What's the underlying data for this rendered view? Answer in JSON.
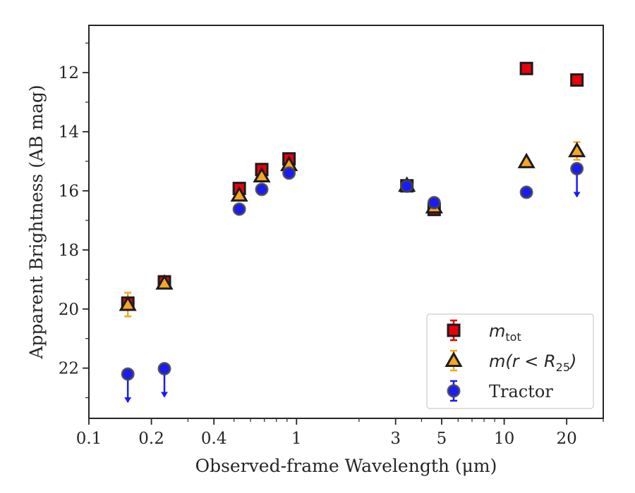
{
  "chart_data": {
    "type": "scatter",
    "xlabel": "Observed-frame Wavelength (μm)",
    "ylabel": "Apparent Brightness (AB mag)",
    "xscale": "log",
    "xlim": [
      0.1,
      30
    ],
    "ylim": [
      23.7,
      10.4
    ],
    "y_inverted": true,
    "x_ticks": [
      0.1,
      0.2,
      0.4,
      1,
      3,
      5,
      10,
      20
    ],
    "x_tick_labels": [
      "0.1",
      "0.2",
      "0.4",
      "1",
      "3",
      "5",
      "10",
      "20"
    ],
    "y_ticks": [
      12,
      14,
      16,
      18,
      20,
      22
    ],
    "y_tick_labels": [
      "12",
      "14",
      "16",
      "18",
      "20",
      "22"
    ],
    "grid": false,
    "legend_position": "lower-right",
    "series": [
      {
        "name": "m_tot",
        "legend": {
          "main": "m",
          "sub": "tot"
        },
        "marker": "square",
        "color": "#e8000b",
        "points": [
          {
            "x": 0.154,
            "y": 19.8,
            "err": 0.15
          },
          {
            "x": 0.231,
            "y": 19.08,
            "err": 0.1
          },
          {
            "x": 0.53,
            "y": 15.92,
            "err": 0.1
          },
          {
            "x": 0.68,
            "y": 15.28,
            "err": 0.1
          },
          {
            "x": 0.92,
            "y": 14.92,
            "err": 0.1
          },
          {
            "x": 3.4,
            "y": 15.83,
            "err": 0.1
          },
          {
            "x": 4.6,
            "y": 16.63,
            "err": 0.1
          },
          {
            "x": 12.8,
            "y": 11.86,
            "err": 0.1
          },
          {
            "x": 22.4,
            "y": 12.25,
            "err": 0.1
          }
        ]
      },
      {
        "name": "m(r < R_25)",
        "legend": {
          "main": "m(r < R",
          "sub": "25",
          "tail": ")"
        },
        "marker": "triangle",
        "color": "#f5a623",
        "points": [
          {
            "x": 0.154,
            "y": 19.85,
            "err": 0.4
          },
          {
            "x": 0.231,
            "y": 19.13,
            "err": 0.1
          },
          {
            "x": 0.53,
            "y": 16.15,
            "err": 0.1
          },
          {
            "x": 0.68,
            "y": 15.5,
            "err": 0.1
          },
          {
            "x": 0.92,
            "y": 15.12,
            "err": 0.1
          },
          {
            "x": 3.4,
            "y": 15.82,
            "err": 0.1
          },
          {
            "x": 4.6,
            "y": 16.55,
            "err": 0.1
          },
          {
            "x": 12.8,
            "y": 15.02,
            "err": 0.1
          },
          {
            "x": 22.4,
            "y": 14.65,
            "err": 0.3
          }
        ]
      },
      {
        "name": "Tractor",
        "legend": {
          "main": "Tractor"
        },
        "marker": "circle",
        "color": "#1a1aff",
        "points": [
          {
            "x": 0.154,
            "y": 22.2,
            "upper_limit": true
          },
          {
            "x": 0.231,
            "y": 22.02,
            "upper_limit": true
          },
          {
            "x": 0.53,
            "y": 16.62,
            "err": 0.05
          },
          {
            "x": 0.68,
            "y": 15.95,
            "err": 0.05
          },
          {
            "x": 0.92,
            "y": 15.4,
            "err": 0.05
          },
          {
            "x": 3.4,
            "y": 15.84,
            "err": 0.05
          },
          {
            "x": 4.6,
            "y": 16.4,
            "err": 0.05
          },
          {
            "x": 12.8,
            "y": 16.05,
            "err": 0.05
          },
          {
            "x": 22.4,
            "y": 15.25,
            "upper_limit": true
          }
        ]
      }
    ]
  }
}
